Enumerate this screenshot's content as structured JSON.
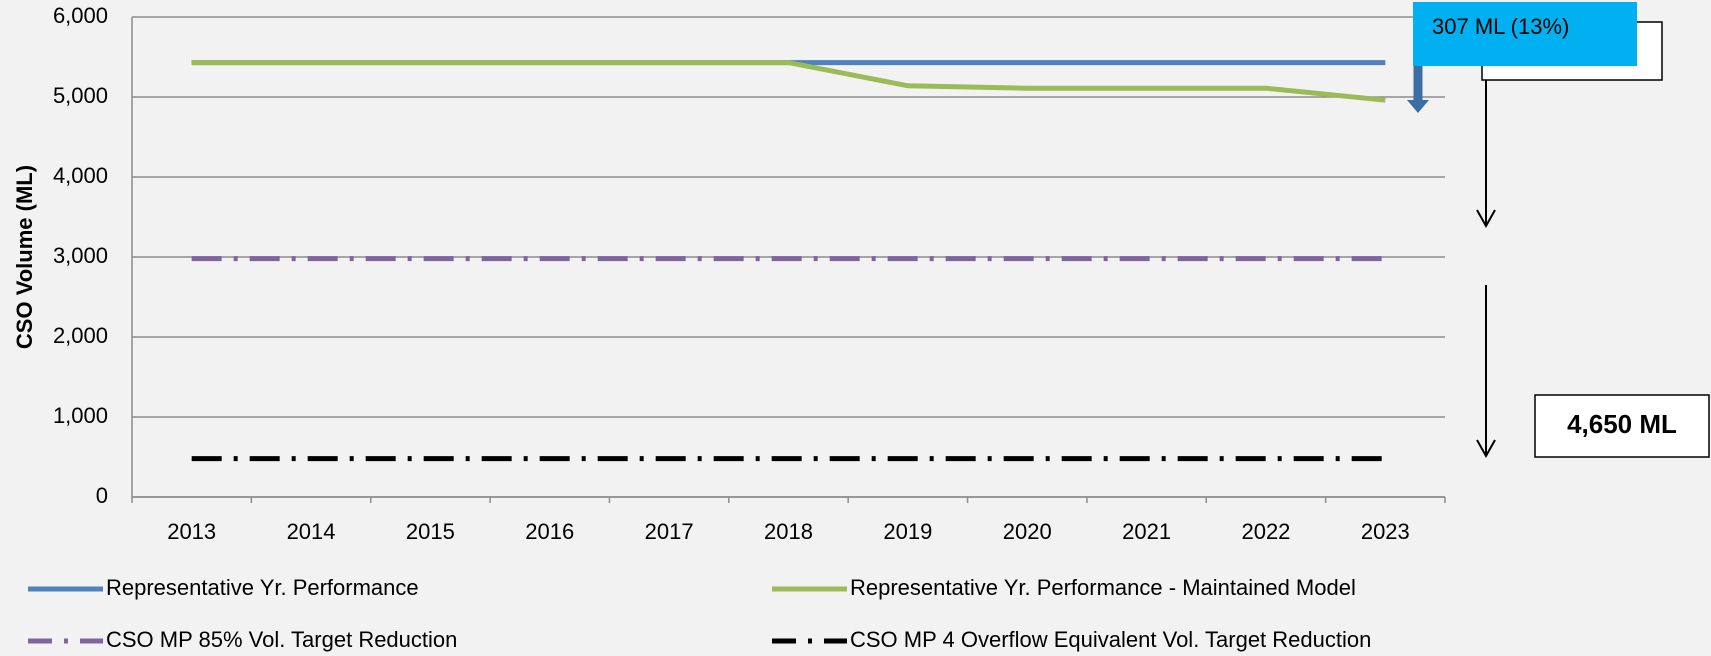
{
  "chart_data": {
    "type": "line",
    "ylabel": "CSO Volume (ML)",
    "categories": [
      "2013",
      "2014",
      "2015",
      "2016",
      "2017",
      "2018",
      "2019",
      "2020",
      "2021",
      "2022",
      "2023"
    ],
    "ylim": [
      0,
      6000
    ],
    "yticks": [
      {
        "value": 0,
        "label": "0"
      },
      {
        "value": 1000,
        "label": "1,000"
      },
      {
        "value": 2000,
        "label": "2,000"
      },
      {
        "value": 3000,
        "label": "3,000"
      },
      {
        "value": 4000,
        "label": "4,000"
      },
      {
        "value": 5000,
        "label": "5,000"
      },
      {
        "value": 6000,
        "label": "6,000"
      }
    ],
    "grid": true,
    "series": [
      {
        "name": "Representative Yr. Performance",
        "color": "#4f81bd",
        "dash": "solid",
        "values": [
          5430,
          5430,
          5430,
          5430,
          5430,
          5430,
          5430,
          5430,
          5430,
          5430,
          5430
        ]
      },
      {
        "name": "Representative Yr. Performance - Maintained Model",
        "color": "#9bbb59",
        "dash": "solid",
        "values": [
          5430,
          5430,
          5430,
          5430,
          5430,
          5430,
          5140,
          5110,
          5110,
          5110,
          4960
        ]
      },
      {
        "name": "CSO MP 85% Vol. Target Reduction",
        "color": "#8064a2",
        "dash": "dash-dot",
        "values": [
          2980,
          2980,
          2980,
          2980,
          2980,
          2980,
          2980,
          2980,
          2980,
          2980,
          2980
        ]
      },
      {
        "name": "CSO MP 4 Overflow Equivalent Vol. Target Reduction",
        "color": "#000000",
        "dash": "dash-dot",
        "values": [
          480,
          480,
          480,
          480,
          480,
          480,
          480,
          480,
          480,
          480,
          480
        ]
      }
    ],
    "annotations": [
      "307 ML (13%)",
      "4,650 ML"
    ]
  }
}
